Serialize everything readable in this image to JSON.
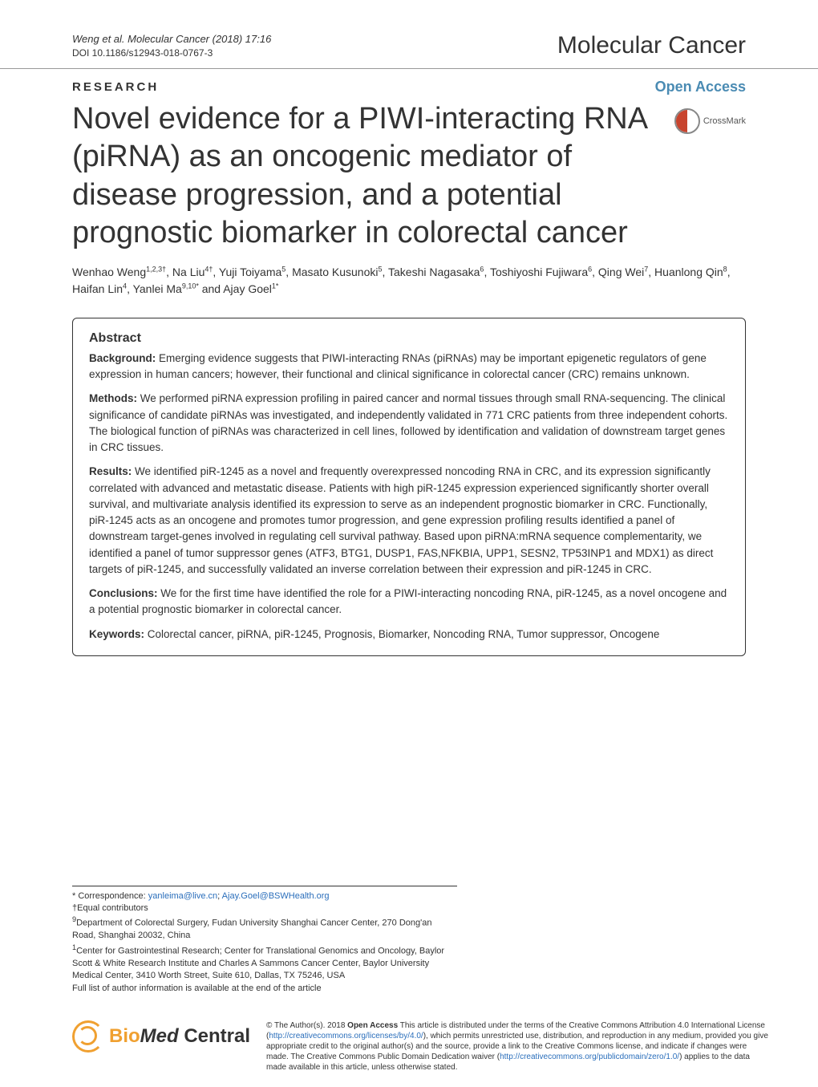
{
  "header": {
    "citation": "Weng et al. Molecular Cancer (2018) 17:16",
    "doi": "DOI 10.1186/s12943-018-0767-3",
    "journal": "Molecular Cancer"
  },
  "section": {
    "type": "RESEARCH",
    "access": "Open Access"
  },
  "crossmark_label": "CrossMark",
  "title": "Novel evidence for a PIWI-interacting RNA (piRNA) as an oncogenic mediator of disease progression, and a potential prognostic biomarker in colorectal cancer",
  "authors_html": "Wenhao Weng<sup>1,2,3†</sup>, Na Liu<sup>4†</sup>, Yuji Toiyama<sup>5</sup>, Masato Kusunoki<sup>5</sup>, Takeshi Nagasaka<sup>6</sup>, Toshiyoshi Fujiwara<sup>6</sup>, Qing Wei<sup>7</sup>, Huanlong Qin<sup>8</sup>, Haifan Lin<sup>4</sup>, Yanlei Ma<sup>9,10*</sup> and Ajay Goel<sup>1*</sup>",
  "abstract": {
    "heading": "Abstract",
    "background_label": "Background:",
    "background": " Emerging evidence suggests that PIWI-interacting RNAs (piRNAs) may be important epigenetic regulators of gene expression in human cancers; however, their functional and clinical significance in colorectal cancer (CRC) remains unknown.",
    "methods_label": "Methods:",
    "methods": " We performed piRNA expression profiling in paired cancer and normal tissues through small RNA-sequencing. The clinical significance of candidate piRNAs was investigated, and independently validated in 771 CRC patients from three independent cohorts. The biological function of piRNAs was characterized in cell lines, followed by identification and validation of downstream target genes in CRC tissues.",
    "results_label": "Results:",
    "results": " We identified piR-1245 as a novel and frequently overexpressed noncoding RNA in CRC, and its expression significantly correlated with advanced and metastatic disease. Patients with high piR-1245 expression experienced significantly shorter overall survival, and multivariate analysis identified its expression to serve as an independent prognostic biomarker in CRC. Functionally, piR-1245 acts as an oncogene and promotes tumor progression, and gene expression profiling results identified a panel of downstream target-genes involved in regulating cell survival pathway. Based upon piRNA:mRNA sequence complementarity, we identified a panel of tumor suppressor genes (ATF3, BTG1, DUSP1, FAS,NFKBIA, UPP1, SESN2, TP53INP1 and MDX1) as direct targets of piR-1245, and successfully validated an inverse correlation between their expression and piR-1245 in CRC.",
    "conclusions_label": "Conclusions:",
    "conclusions": " We for the first time have identified the role for a PIWI-interacting noncoding RNA, piR-1245, as a novel oncogene and a potential prognostic biomarker in colorectal cancer.",
    "keywords_label": "Keywords:",
    "keywords": " Colorectal cancer, piRNA, piR-1245, Prognosis, Biomarker, Noncoding RNA, Tumor suppressor, Oncogene"
  },
  "footer": {
    "corr_label": "* Correspondence: ",
    "email1": "yanleima@live.cn",
    "sep": "; ",
    "email2": "Ajay.Goel@BSWHealth.org",
    "equal": "†Equal contributors",
    "aff9": "9Department of Colorectal Surgery, Fudan University Shanghai Cancer Center, 270 Dong'an Road, Shanghai 20032, China",
    "aff1": "1Center for Gastrointestinal Research; Center for Translational Genomics and Oncology, Baylor Scott & White Research Institute and Charles A Sammons Cancer Center, Baylor University Medical Center, 3410 Worth Street, Suite 610, Dallas, TX 75246, USA",
    "full_list": "Full list of author information is available at the end of the article"
  },
  "logo": {
    "bio": "Bio",
    "med": "Med",
    "central": " Central"
  },
  "license": {
    "prefix": "© The Author(s). 2018 ",
    "oa": "Open Access",
    "body1": " This article is distributed under the terms of the Creative Commons Attribution 4.0 International License (",
    "link1": "http://creativecommons.org/licenses/by/4.0/",
    "body2": "), which permits unrestricted use, distribution, and reproduction in any medium, provided you give appropriate credit to the original author(s) and the source, provide a link to the Creative Commons license, and indicate if changes were made. The Creative Commons Public Domain Dedication waiver (",
    "link2": "http://creativecommons.org/publicdomain/zero/1.0/",
    "body3": ") applies to the data made available in this article, unless otherwise stated."
  }
}
